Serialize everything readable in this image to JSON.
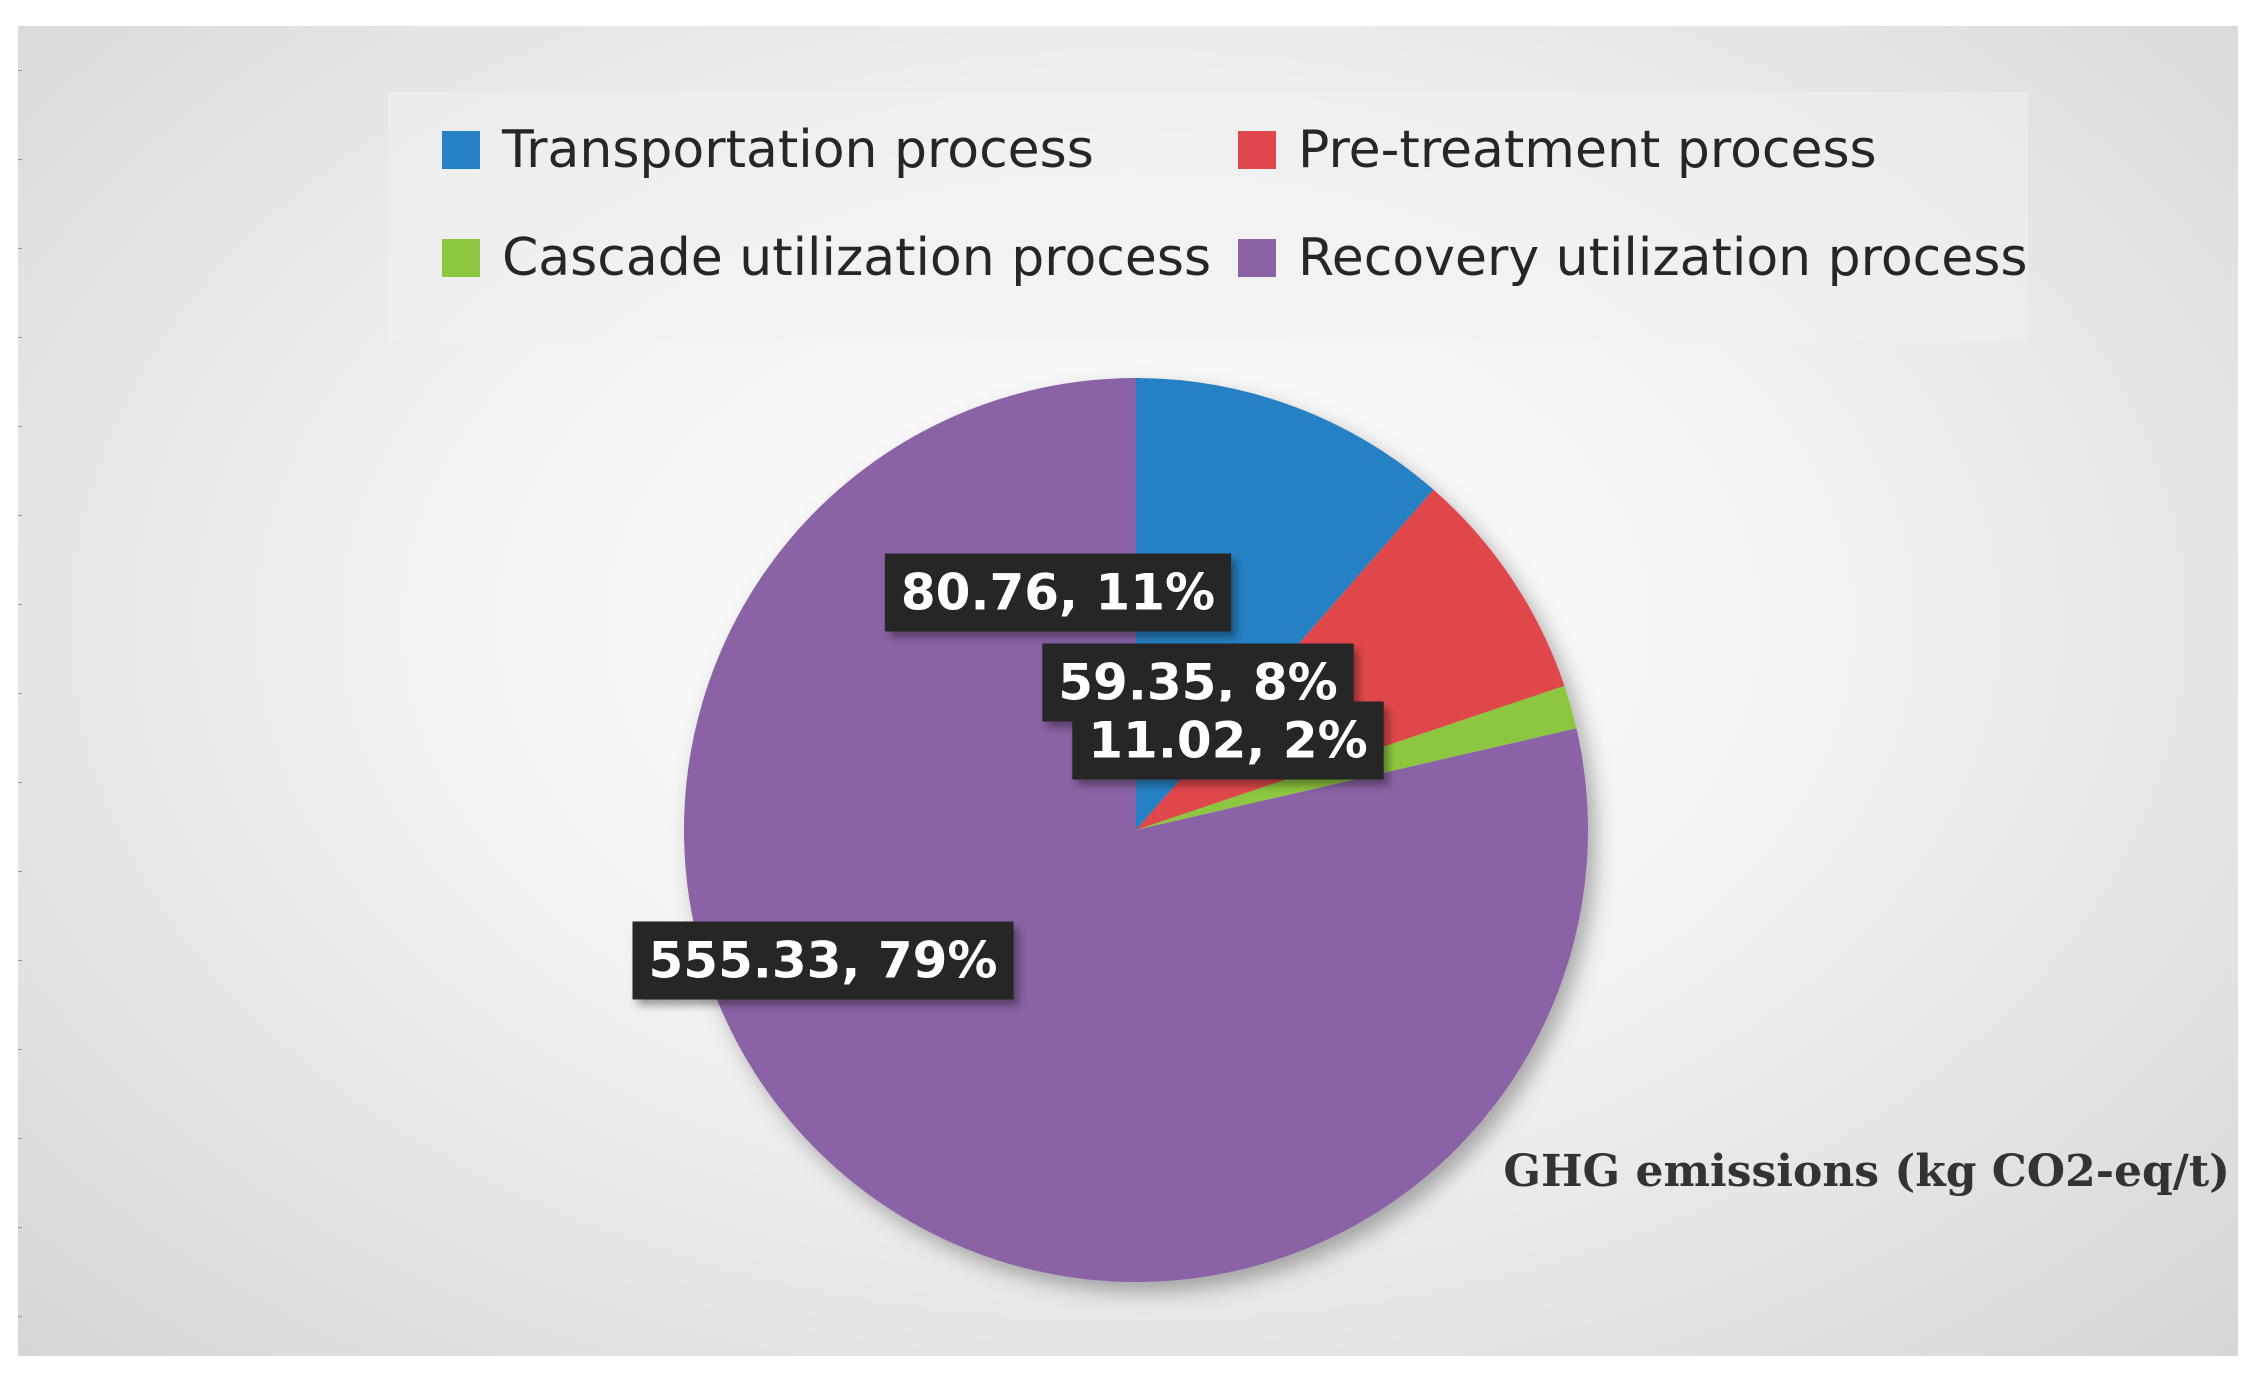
{
  "chart_data": {
    "type": "pie",
    "title": "",
    "categories": [
      "Transportation process",
      "Pre-treatment process",
      "Cascade utilization process",
      "Recovery utilization process"
    ],
    "values": [
      80.76,
      59.35,
      11.02,
      555.33
    ],
    "percent_labels": [
      "11%",
      "8%",
      "2%",
      "79%"
    ],
    "data_labels": [
      "80.76, 11%",
      "59.35, 8%",
      "11.02, 2%",
      "555.33, 79%"
    ],
    "colors": [
      "#2581C4",
      "#E0474C",
      "#8DC63F",
      "#8B62A5"
    ],
    "start_angle_deg": 0,
    "direction": "clockwise",
    "legend_position": "top",
    "caption": "GHG emissions (kg CO2-eq/t)"
  }
}
